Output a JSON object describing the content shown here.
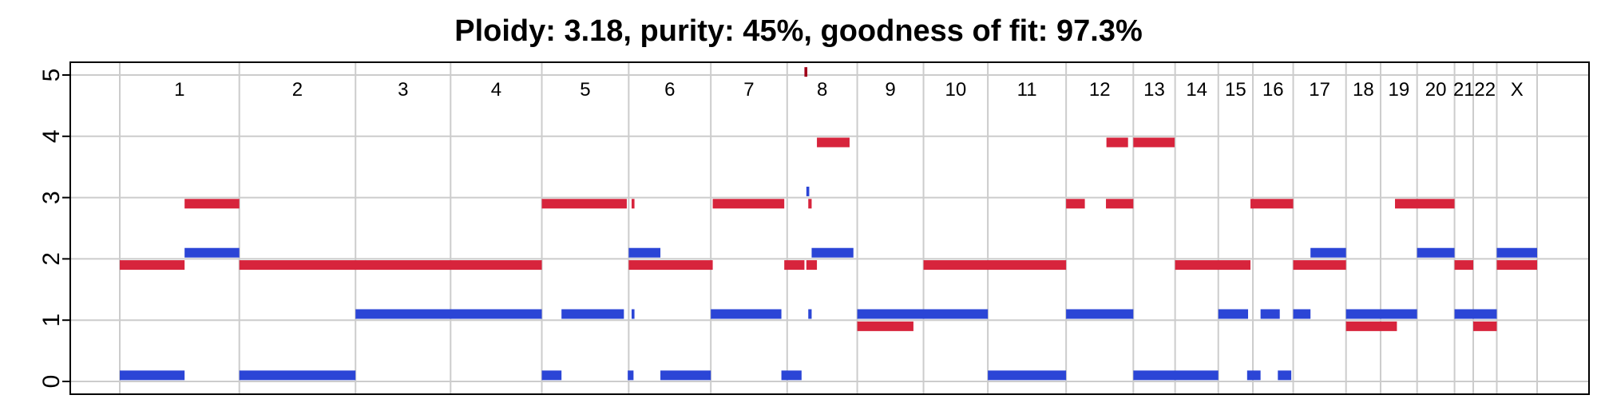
{
  "chart_data": {
    "type": "segment",
    "title": "Ploidy: 3.18, purity: 45%, goodness of fit: 97.3%",
    "xlabel": "",
    "ylabel": "",
    "ylim": [
      0,
      5
    ],
    "yticks": [
      "0",
      "1",
      "2",
      "3",
      "4",
      "5"
    ],
    "grid": true,
    "colors": {
      "major": "#d7243c",
      "minor": "#2b45d6",
      "outlier": "#a0001a",
      "grid": "#cccccc"
    },
    "chromosomes": [
      {
        "label": "1",
        "start": 0,
        "end": 249
      },
      {
        "label": "2",
        "start": 249,
        "end": 491
      },
      {
        "label": "3",
        "start": 491,
        "end": 689
      },
      {
        "label": "4",
        "start": 689,
        "end": 879
      },
      {
        "label": "5",
        "start": 879,
        "end": 1060
      },
      {
        "label": "6",
        "start": 1060,
        "end": 1231
      },
      {
        "label": "7",
        "start": 1231,
        "end": 1390
      },
      {
        "label": "8",
        "start": 1390,
        "end": 1536
      },
      {
        "label": "9",
        "start": 1536,
        "end": 1674
      },
      {
        "label": "10",
        "start": 1674,
        "end": 1808
      },
      {
        "label": "11",
        "start": 1808,
        "end": 1971
      },
      {
        "label": "12",
        "start": 1971,
        "end": 2111
      },
      {
        "label": "13",
        "start": 2111,
        "end": 2198
      },
      {
        "label": "14",
        "start": 2198,
        "end": 2288
      },
      {
        "label": "15",
        "start": 2288,
        "end": 2360
      },
      {
        "label": "16",
        "start": 2360,
        "end": 2444
      },
      {
        "label": "17",
        "start": 2444,
        "end": 2554
      },
      {
        "label": "18",
        "start": 2554,
        "end": 2626
      },
      {
        "label": "19",
        "start": 2626,
        "end": 2702
      },
      {
        "label": "20",
        "start": 2702,
        "end": 2780
      },
      {
        "label": "21",
        "start": 2780,
        "end": 2819
      },
      {
        "label": "22",
        "start": 2819,
        "end": 2868
      },
      {
        "label": "X",
        "start": 2868,
        "end": 2952
      }
    ],
    "series": [
      {
        "color": "#d7243c",
        "segments": [
          {
            "x0": 0,
            "x1": 135,
            "y": 1.9
          },
          {
            "x0": 135,
            "x1": 249,
            "y": 2.9
          },
          {
            "x0": 249,
            "x1": 879,
            "y": 1.9
          },
          {
            "x0": 879,
            "x1": 1056,
            "y": 2.9
          },
          {
            "x0": 1066,
            "x1": 1072,
            "y": 2.9
          },
          {
            "x0": 1060,
            "x1": 1235,
            "y": 1.9
          },
          {
            "x0": 1235,
            "x1": 1384,
            "y": 2.9
          },
          {
            "x0": 1384,
            "x1": 1426,
            "y": 1.9
          },
          {
            "x0": 1434,
            "x1": 1441,
            "y": 2.9
          },
          {
            "x0": 1430,
            "x1": 1452,
            "y": 1.9
          },
          {
            "x0": 1452,
            "x1": 1520,
            "y": 3.9
          },
          {
            "x0": 1536,
            "x1": 1653,
            "y": 0.9
          },
          {
            "x0": 1674,
            "x1": 1971,
            "y": 1.9
          },
          {
            "x0": 1971,
            "x1": 2010,
            "y": 2.9
          },
          {
            "x0": 2055,
            "x1": 2100,
            "y": 3.9
          },
          {
            "x0": 2054,
            "x1": 2111,
            "y": 2.9
          },
          {
            "x0": 2111,
            "x1": 2197,
            "y": 3.9
          },
          {
            "x0": 2198,
            "x1": 2355,
            "y": 1.9
          },
          {
            "x0": 2355,
            "x1": 2444,
            "y": 2.9
          },
          {
            "x0": 2444,
            "x1": 2554,
            "y": 1.9
          },
          {
            "x0": 2554,
            "x1": 2660,
            "y": 0.9
          },
          {
            "x0": 2656,
            "x1": 2780,
            "y": 2.9
          },
          {
            "x0": 2780,
            "x1": 2819,
            "y": 1.9
          },
          {
            "x0": 2819,
            "x1": 2868,
            "y": 0.9
          },
          {
            "x0": 2868,
            "x1": 2952,
            "y": 1.9
          }
        ]
      },
      {
        "color": "#2b45d6",
        "segments": [
          {
            "x0": 0,
            "x1": 135,
            "y": 0.1
          },
          {
            "x0": 135,
            "x1": 249,
            "y": 2.1
          },
          {
            "x0": 249,
            "x1": 491,
            "y": 0.1
          },
          {
            "x0": 491,
            "x1": 879,
            "y": 1.1
          },
          {
            "x0": 879,
            "x1": 920,
            "y": 0.1
          },
          {
            "x0": 920,
            "x1": 1050,
            "y": 1.1
          },
          {
            "x0": 1058,
            "x1": 1070,
            "y": 0.1
          },
          {
            "x0": 1066,
            "x1": 1072,
            "y": 1.1
          },
          {
            "x0": 1060,
            "x1": 1126,
            "y": 2.1
          },
          {
            "x0": 1126,
            "x1": 1231,
            "y": 0.1
          },
          {
            "x0": 1231,
            "x1": 1378,
            "y": 1.1
          },
          {
            "x0": 1378,
            "x1": 1420,
            "y": 0.1
          },
          {
            "x0": 1430,
            "x1": 1436,
            "y": 3.1
          },
          {
            "x0": 1434,
            "x1": 1441,
            "y": 1.1
          },
          {
            "x0": 1441,
            "x1": 1528,
            "y": 2.1
          },
          {
            "x0": 1536,
            "x1": 1808,
            "y": 1.1
          },
          {
            "x0": 1808,
            "x1": 1971,
            "y": 0.1
          },
          {
            "x0": 1971,
            "x1": 2111,
            "y": 1.1
          },
          {
            "x0": 2111,
            "x1": 2288,
            "y": 0.1
          },
          {
            "x0": 2288,
            "x1": 2350,
            "y": 1.1
          },
          {
            "x0": 2348,
            "x1": 2376,
            "y": 0.1
          },
          {
            "x0": 2376,
            "x1": 2416,
            "y": 1.1
          },
          {
            "x0": 2412,
            "x1": 2440,
            "y": 0.1
          },
          {
            "x0": 2444,
            "x1": 2480,
            "y": 1.1
          },
          {
            "x0": 2480,
            "x1": 2554,
            "y": 2.1
          },
          {
            "x0": 2554,
            "x1": 2702,
            "y": 1.1
          },
          {
            "x0": 2702,
            "x1": 2780,
            "y": 2.1
          },
          {
            "x0": 2780,
            "x1": 2868,
            "y": 1.1
          },
          {
            "x0": 2868,
            "x1": 2952,
            "y": 2.1
          }
        ]
      },
      {
        "color": "#a0001a",
        "segments": [
          {
            "x0": 1426,
            "x1": 1432,
            "y": 5.05
          }
        ]
      }
    ]
  }
}
